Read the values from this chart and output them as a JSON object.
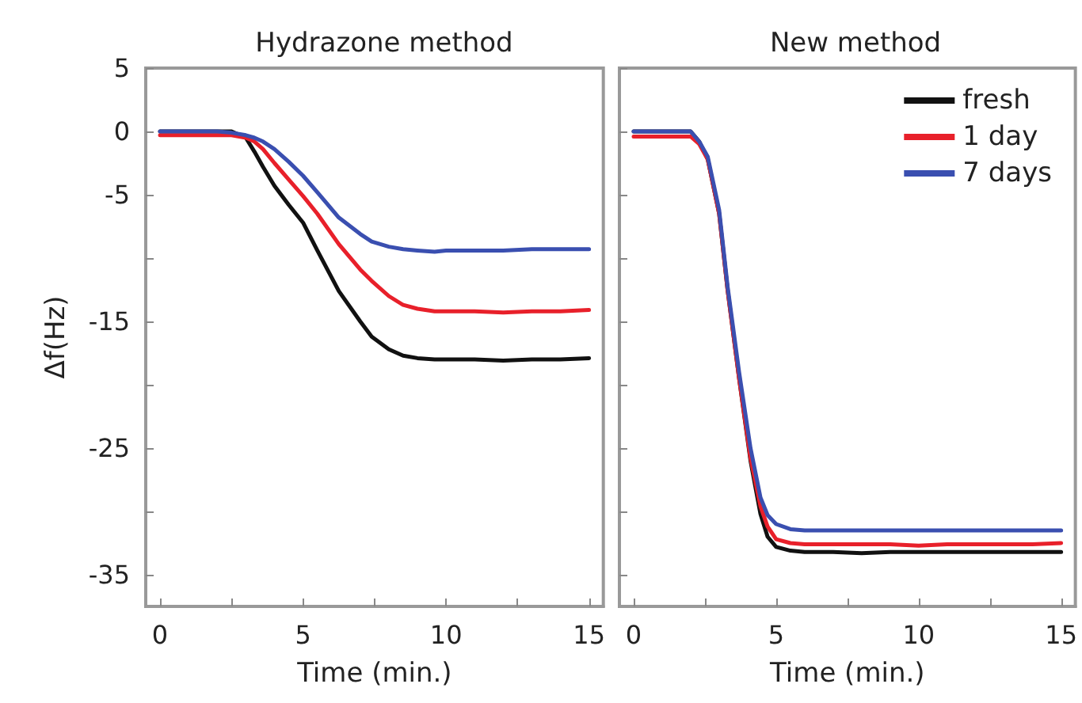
{
  "chart_data": [
    {
      "type": "line",
      "title": "Hydrazone method",
      "xlabel": "Time (min.)",
      "ylabel": "Δf(Hz)",
      "x": [
        0,
        1,
        2,
        2.5,
        3,
        3.3,
        3.6,
        4,
        4.5,
        5,
        5.5,
        6.25,
        7,
        7.4,
        8,
        8.5,
        9,
        9.6,
        10,
        11,
        12,
        13,
        14,
        15
      ],
      "series": [
        {
          "color": "#111111",
          "values": [
            0,
            0,
            0,
            0,
            -0.5,
            -1.6,
            -2.8,
            -4.3,
            -5.8,
            -7.2,
            -9.4,
            -12.6,
            -15,
            -16.2,
            -17.2,
            -17.7,
            -17.9,
            -18,
            -18,
            -18,
            -18.1,
            -18,
            -18,
            -17.9
          ]
        },
        {
          "color": "#e8202a",
          "values": [
            -0.3,
            -0.3,
            -0.3,
            -0.3,
            -0.5,
            -0.8,
            -1.4,
            -2.5,
            -3.8,
            -5.1,
            -6.5,
            -8.9,
            -10.9,
            -11.8,
            -13,
            -13.7,
            -14,
            -14.2,
            -14.2,
            -14.2,
            -14.3,
            -14.2,
            -14.2,
            -14.1
          ]
        },
        {
          "color": "#3a4fb0",
          "values": [
            0,
            0,
            0,
            -0.1,
            -0.3,
            -0.5,
            -0.8,
            -1.4,
            -2.4,
            -3.5,
            -4.8,
            -6.8,
            -8.1,
            -8.7,
            -9.1,
            -9.3,
            -9.4,
            -9.5,
            -9.4,
            -9.4,
            -9.4,
            -9.3,
            -9.3,
            -9.3
          ]
        }
      ],
      "xlim": [
        -0.5,
        15.5
      ],
      "ylim": [
        -37.5,
        5
      ],
      "xticks": [
        0,
        {
          "value": 2.5,
          "label": null
        },
        5,
        {
          "value": 7.5,
          "label": null
        },
        10,
        {
          "value": 12.5,
          "label": null
        },
        15
      ],
      "yticks": [
        5,
        0,
        -5,
        {
          "value": -10,
          "label": null
        },
        -15,
        {
          "value": -20,
          "label": null
        },
        -25,
        {
          "value": -30,
          "label": null
        },
        -35
      ],
      "legend": false,
      "grid": false,
      "marker": "none",
      "line_style": "solid"
    },
    {
      "type": "line",
      "title": "New method",
      "xlabel": "Time (min.)",
      "x": [
        0,
        1,
        2,
        2.3,
        2.6,
        3,
        3.3,
        3.7,
        4.1,
        4.45,
        4.7,
        5,
        5.5,
        6,
        7,
        8,
        9,
        10,
        11,
        12,
        13,
        14,
        15
      ],
      "series": [
        {
          "name": "fresh",
          "color": "#111111",
          "values": [
            0,
            0,
            0,
            -0.8,
            -2.2,
            -6.5,
            -12.6,
            -19.5,
            -26,
            -30.2,
            -32,
            -32.8,
            -33.1,
            -33.2,
            -33.2,
            -33.3,
            -33.2,
            -33.2,
            -33.2,
            -33.2,
            -33.2,
            -33.2,
            -33.2
          ]
        },
        {
          "name": "1 day",
          "color": "#e8202a",
          "values": [
            -0.4,
            -0.4,
            -0.4,
            -1,
            -2.2,
            -6.5,
            -12.6,
            -19.5,
            -25.8,
            -29.6,
            -31.2,
            -32.2,
            -32.5,
            -32.6,
            -32.6,
            -32.6,
            -32.6,
            -32.7,
            -32.6,
            -32.6,
            -32.6,
            -32.6,
            -32.5
          ]
        },
        {
          "name": "7 days",
          "color": "#3a4fb0",
          "values": [
            0,
            0,
            0,
            -0.8,
            -2,
            -6.2,
            -12.3,
            -19,
            -25,
            -28.9,
            -30.3,
            -31,
            -31.4,
            -31.5,
            -31.5,
            -31.5,
            -31.5,
            -31.5,
            -31.5,
            -31.5,
            -31.5,
            -31.5,
            -31.5
          ]
        }
      ],
      "xlim": [
        -0.5,
        15.5
      ],
      "ylim": [
        -37.5,
        5
      ],
      "xticks": [
        0,
        {
          "value": 2.5,
          "label": null
        },
        5,
        {
          "value": 7.5,
          "label": null
        },
        10,
        {
          "value": 12.5,
          "label": null
        },
        15
      ],
      "yticks": [
        5,
        0,
        -5,
        {
          "value": -10,
          "label": null
        },
        -15,
        {
          "value": -20,
          "label": null
        },
        -25,
        {
          "value": -30,
          "label": null
        },
        -35
      ],
      "tick_labels": "x",
      "legend": "top right",
      "grid": false,
      "marker": "none",
      "line_style": "solid"
    }
  ]
}
